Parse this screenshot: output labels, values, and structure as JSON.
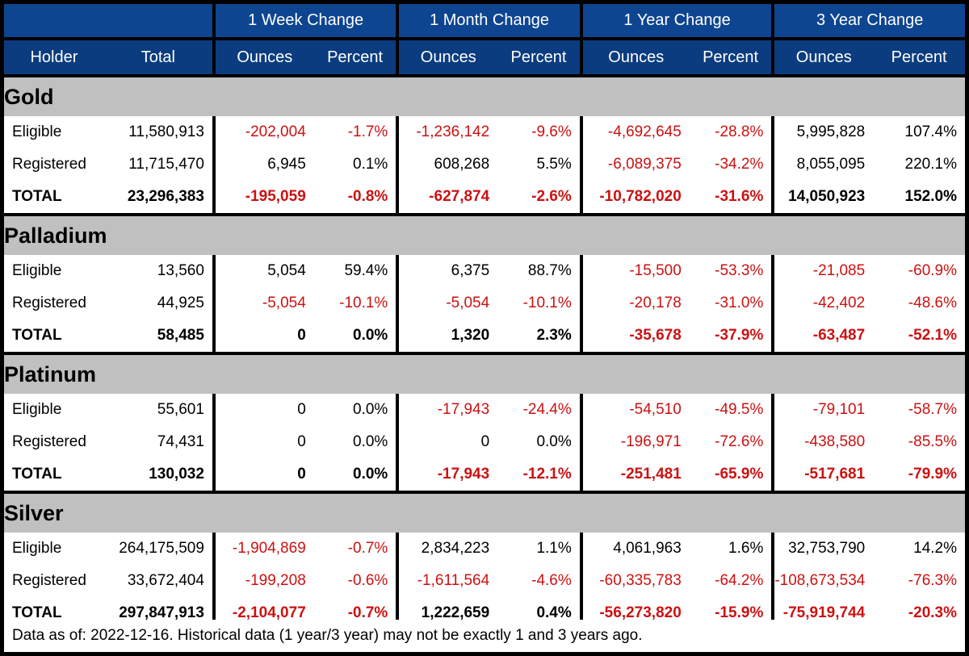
{
  "header": {
    "groups": [
      "1 Week Change",
      "1 Month Change",
      "1 Year Change",
      "3 Year Change"
    ],
    "holder": "Holder",
    "total": "Total",
    "ounces": "Ounces",
    "percent": "Percent"
  },
  "colors": {
    "header_blue": "#0e4590",
    "sub_blue": "#0b3c7f",
    "section_gray": "#c0c0c0",
    "negative_red": "#cc1111"
  },
  "metals": [
    {
      "name": "Gold",
      "rows": [
        [
          "Eligible",
          "11,580,913",
          "-202,004",
          "-1.7%",
          "-1,236,142",
          "-9.6%",
          "-4,692,645",
          "-28.8%",
          "5,995,828",
          "107.4%"
        ],
        [
          "Registered",
          "11,715,470",
          "6,945",
          "0.1%",
          "608,268",
          "5.5%",
          "-6,089,375",
          "-34.2%",
          "8,055,095",
          "220.1%"
        ],
        [
          "TOTAL",
          "23,296,383",
          "-195,059",
          "-0.8%",
          "-627,874",
          "-2.6%",
          "-10,782,020",
          "-31.6%",
          "14,050,923",
          "152.0%"
        ]
      ]
    },
    {
      "name": "Palladium",
      "rows": [
        [
          "Eligible",
          "13,560",
          "5,054",
          "59.4%",
          "6,375",
          "88.7%",
          "-15,500",
          "-53.3%",
          "-21,085",
          "-60.9%"
        ],
        [
          "Registered",
          "44,925",
          "-5,054",
          "-10.1%",
          "-5,054",
          "-10.1%",
          "-20,178",
          "-31.0%",
          "-42,402",
          "-48.6%"
        ],
        [
          "TOTAL",
          "58,485",
          "0",
          "0.0%",
          "1,320",
          "2.3%",
          "-35,678",
          "-37.9%",
          "-63,487",
          "-52.1%"
        ]
      ]
    },
    {
      "name": "Platinum",
      "rows": [
        [
          "Eligible",
          "55,601",
          "0",
          "0.0%",
          "-17,943",
          "-24.4%",
          "-54,510",
          "-49.5%",
          "-79,101",
          "-58.7%"
        ],
        [
          "Registered",
          "74,431",
          "0",
          "0.0%",
          "0",
          "0.0%",
          "-196,971",
          "-72.6%",
          "-438,580",
          "-85.5%"
        ],
        [
          "TOTAL",
          "130,032",
          "0",
          "0.0%",
          "-17,943",
          "-12.1%",
          "-251,481",
          "-65.9%",
          "-517,681",
          "-79.9%"
        ]
      ]
    },
    {
      "name": "Silver",
      "rows": [
        [
          "Eligible",
          "264,175,509",
          "-1,904,869",
          "-0.7%",
          "2,834,223",
          "1.1%",
          "4,061,963",
          "1.6%",
          "32,753,790",
          "14.2%"
        ],
        [
          "Registered",
          "33,672,404",
          "-199,208",
          "-0.6%",
          "-1,611,564",
          "-4.6%",
          "-60,335,783",
          "-64.2%",
          "-108,673,534",
          "-76.3%"
        ],
        [
          "TOTAL",
          "297,847,913",
          "-2,104,077",
          "-0.7%",
          "1,222,659",
          "0.4%",
          "-56,273,820",
          "-15.9%",
          "-75,919,744",
          "-20.3%"
        ]
      ]
    }
  ],
  "footer": "Data as of: 2022-12-16. Historical data (1 year/3 year) may not be exactly 1 and 3 years ago."
}
